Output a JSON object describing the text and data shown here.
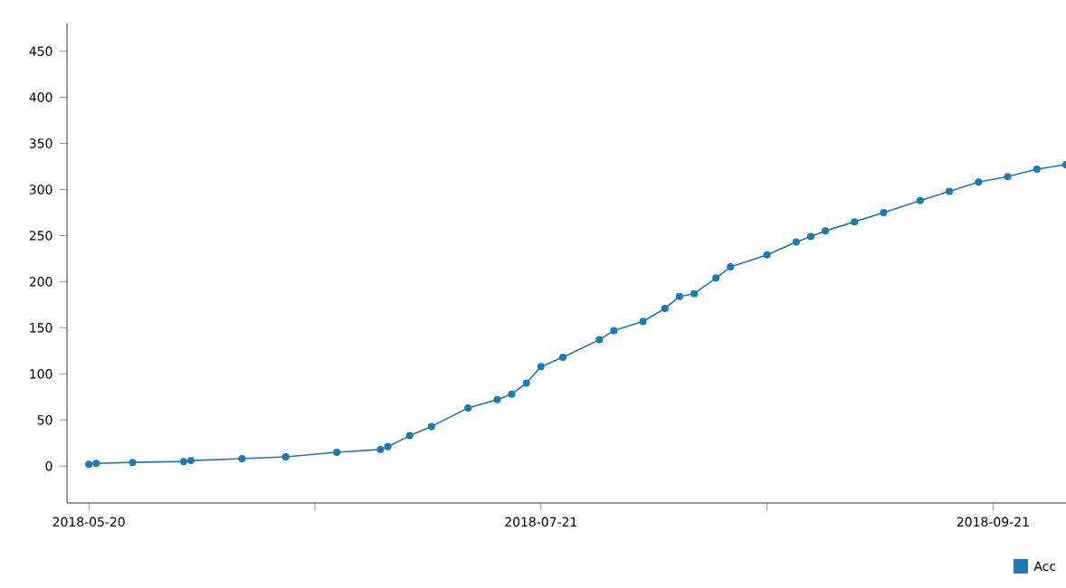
{
  "chart_data": {
    "type": "line",
    "x": [
      "2018-05-20",
      "2018-05-21",
      "2018-05-26",
      "2018-06-02",
      "2018-06-03",
      "2018-06-10",
      "2018-06-16",
      "2018-06-23",
      "2018-06-29",
      "2018-06-30",
      "2018-07-03",
      "2018-07-06",
      "2018-07-11",
      "2018-07-15",
      "2018-07-17",
      "2018-07-19",
      "2018-07-21",
      "2018-07-24",
      "2018-07-29",
      "2018-07-31",
      "2018-08-04",
      "2018-08-07",
      "2018-08-09",
      "2018-08-11",
      "2018-08-14",
      "2018-08-16",
      "2018-08-21",
      "2018-08-25",
      "2018-08-27",
      "2018-08-29",
      "2018-09-02",
      "2018-09-06",
      "2018-09-11",
      "2018-09-15",
      "2018-09-19",
      "2018-09-23",
      "2018-09-27",
      "2018-10-01"
    ],
    "series": [
      {
        "name": "Acc",
        "color": "#1f77b4",
        "values": [
          2,
          3,
          4,
          5,
          6,
          8,
          10,
          15,
          18,
          21,
          33,
          43,
          63,
          72,
          78,
          90,
          108,
          118,
          137,
          147,
          157,
          171,
          184,
          187,
          204,
          216,
          229,
          243,
          249,
          255,
          265,
          275,
          288,
          298,
          308,
          314,
          322,
          327
        ]
      }
    ],
    "xlim": [
      "2018-05-17",
      "2018-10-01"
    ],
    "xticks": [
      {
        "value": "2018-05-20",
        "label": "2018-05-20"
      },
      {
        "value": "2018-06-20",
        "label": null
      },
      {
        "value": "2018-07-21",
        "label": "2018-07-21"
      },
      {
        "value": "2018-08-21",
        "label": null
      },
      {
        "value": "2018-09-21",
        "label": "2018-09-21"
      }
    ],
    "ylim": [
      -40,
      480
    ],
    "yticks": [
      0,
      50,
      100,
      150,
      200,
      250,
      300,
      350,
      400,
      450
    ],
    "marker": "circle",
    "line_style": "solid",
    "grid": false,
    "legend": "bottom right"
  }
}
